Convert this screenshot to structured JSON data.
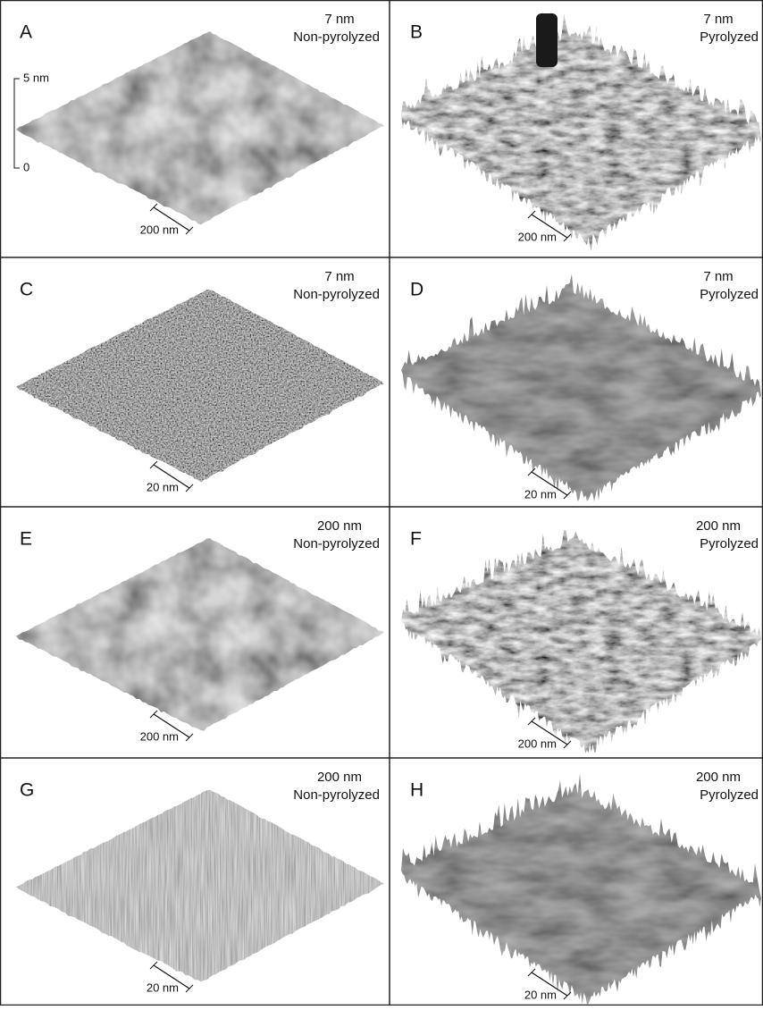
{
  "panels": [
    {
      "letter": "A",
      "thickness": "7 nm",
      "condition": "Non-pyrolyzed",
      "scale_bar": "200 nm"
    },
    {
      "letter": "B",
      "thickness": "7 nm",
      "condition": "Pyrolyzed",
      "scale_bar": "200 nm"
    },
    {
      "letter": "C",
      "thickness": "7 nm",
      "condition": "Non-pyrolyzed",
      "scale_bar": "20 nm"
    },
    {
      "letter": "D",
      "thickness": "7 nm",
      "condition": "Pyrolyzed",
      "scale_bar": "20 nm"
    },
    {
      "letter": "E",
      "thickness": "200 nm",
      "condition": "Non-pyrolyzed",
      "scale_bar": "200 nm"
    },
    {
      "letter": "F",
      "thickness": "200 nm",
      "condition": "Pyrolyzed",
      "scale_bar": "200 nm"
    },
    {
      "letter": "G",
      "thickness": "200 nm",
      "condition": "Non-pyrolyzed",
      "scale_bar": "20 nm"
    },
    {
      "letter": "H",
      "thickness": "200 nm",
      "condition": "Pyrolyzed",
      "scale_bar": "20 nm"
    }
  ],
  "height_scale": {
    "top": "5 nm",
    "bottom": "0"
  }
}
